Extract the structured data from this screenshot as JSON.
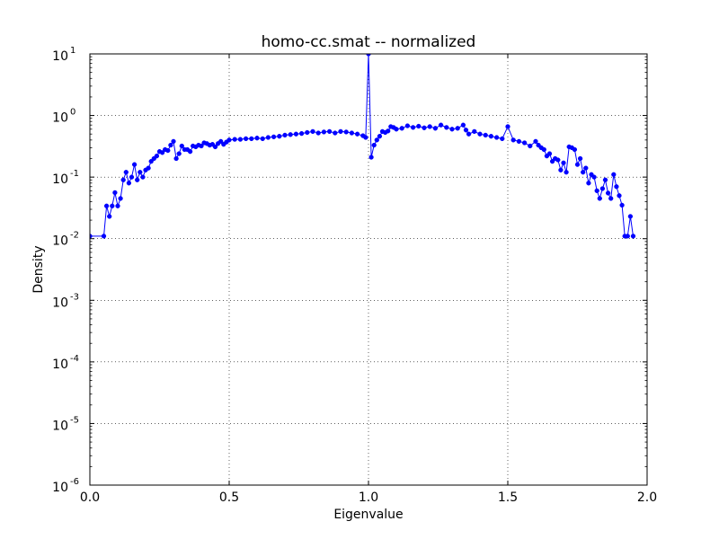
{
  "chart_data": {
    "type": "line",
    "title": "homo-cc.smat -- normalized",
    "xlabel": "Eigenvalue",
    "ylabel": "Density",
    "xlim": [
      0.0,
      2.0
    ],
    "ylim": [
      1e-06,
      10
    ],
    "yscale": "log",
    "grid": true,
    "x_ticks": [
      "0.0",
      "0.5",
      "1.0",
      "1.5",
      "2.0"
    ],
    "y_ticks": [
      {
        "value": 1e-06,
        "base": "10",
        "exp": "-6"
      },
      {
        "value": 1e-05,
        "base": "10",
        "exp": "-5"
      },
      {
        "value": 0.0001,
        "base": "10",
        "exp": "-4"
      },
      {
        "value": 0.001,
        "base": "10",
        "exp": "-3"
      },
      {
        "value": 0.01,
        "base": "10",
        "exp": "-2"
      },
      {
        "value": 0.1,
        "base": "10",
        "exp": "-1"
      },
      {
        "value": 1,
        "base": "10",
        "exp": "0"
      },
      {
        "value": 10,
        "base": "10",
        "exp": "1"
      }
    ],
    "line_color": "#0000ff",
    "marker": "circle",
    "series": [
      {
        "x": [
          0.0,
          0.05,
          0.06,
          0.07,
          0.08,
          0.09,
          0.1,
          0.11,
          0.12,
          0.13,
          0.14,
          0.15,
          0.16,
          0.17,
          0.18,
          0.19,
          0.2,
          0.21,
          0.22,
          0.23,
          0.24,
          0.25,
          0.26,
          0.27,
          0.28,
          0.29,
          0.3,
          0.31,
          0.32,
          0.33,
          0.34,
          0.35,
          0.36,
          0.37,
          0.38,
          0.39,
          0.4,
          0.41,
          0.42,
          0.43,
          0.44,
          0.45,
          0.46,
          0.47,
          0.48,
          0.49,
          0.5,
          0.52,
          0.54,
          0.56,
          0.58,
          0.6,
          0.62,
          0.64,
          0.66,
          0.68,
          0.7,
          0.72,
          0.74,
          0.76,
          0.78,
          0.8,
          0.82,
          0.84,
          0.86,
          0.88,
          0.9,
          0.92,
          0.94,
          0.96,
          0.98,
          0.99,
          1.0,
          1.01,
          1.02,
          1.03,
          1.04,
          1.05,
          1.06,
          1.07,
          1.08,
          1.09,
          1.1,
          1.12,
          1.14,
          1.16,
          1.18,
          1.2,
          1.22,
          1.24,
          1.26,
          1.28,
          1.3,
          1.32,
          1.34,
          1.35,
          1.36,
          1.38,
          1.4,
          1.42,
          1.44,
          1.46,
          1.48,
          1.5,
          1.52,
          1.54,
          1.56,
          1.58,
          1.6,
          1.61,
          1.62,
          1.63,
          1.64,
          1.65,
          1.66,
          1.67,
          1.68,
          1.69,
          1.7,
          1.71,
          1.72,
          1.73,
          1.74,
          1.75,
          1.76,
          1.77,
          1.78,
          1.79,
          1.8,
          1.81,
          1.82,
          1.83,
          1.84,
          1.85,
          1.86,
          1.87,
          1.88,
          1.89,
          1.9,
          1.91,
          1.92,
          1.93,
          1.94,
          1.95
        ],
        "y": [
          0.011,
          0.011,
          0.034,
          0.023,
          0.034,
          0.056,
          0.034,
          0.045,
          0.09,
          0.12,
          0.08,
          0.1,
          0.16,
          0.09,
          0.12,
          0.1,
          0.13,
          0.14,
          0.18,
          0.2,
          0.22,
          0.26,
          0.25,
          0.28,
          0.27,
          0.33,
          0.38,
          0.2,
          0.24,
          0.32,
          0.28,
          0.28,
          0.26,
          0.32,
          0.31,
          0.33,
          0.32,
          0.36,
          0.35,
          0.33,
          0.34,
          0.31,
          0.35,
          0.38,
          0.34,
          0.37,
          0.4,
          0.41,
          0.41,
          0.42,
          0.42,
          0.43,
          0.42,
          0.44,
          0.45,
          0.46,
          0.48,
          0.49,
          0.5,
          0.51,
          0.53,
          0.55,
          0.52,
          0.54,
          0.55,
          0.52,
          0.55,
          0.54,
          0.52,
          0.5,
          0.47,
          0.44,
          10.0,
          0.21,
          0.33,
          0.4,
          0.46,
          0.55,
          0.53,
          0.56,
          0.66,
          0.64,
          0.6,
          0.62,
          0.68,
          0.64,
          0.67,
          0.63,
          0.66,
          0.62,
          0.7,
          0.64,
          0.6,
          0.62,
          0.7,
          0.58,
          0.5,
          0.55,
          0.5,
          0.48,
          0.46,
          0.44,
          0.42,
          0.66,
          0.4,
          0.38,
          0.36,
          0.32,
          0.38,
          0.33,
          0.3,
          0.28,
          0.22,
          0.24,
          0.18,
          0.2,
          0.19,
          0.13,
          0.17,
          0.12,
          0.31,
          0.3,
          0.28,
          0.16,
          0.2,
          0.12,
          0.14,
          0.08,
          0.11,
          0.1,
          0.06,
          0.045,
          0.065,
          0.09,
          0.055,
          0.045,
          0.11,
          0.07,
          0.05,
          0.035,
          0.011,
          0.011,
          0.023,
          0.011
        ]
      }
    ]
  }
}
